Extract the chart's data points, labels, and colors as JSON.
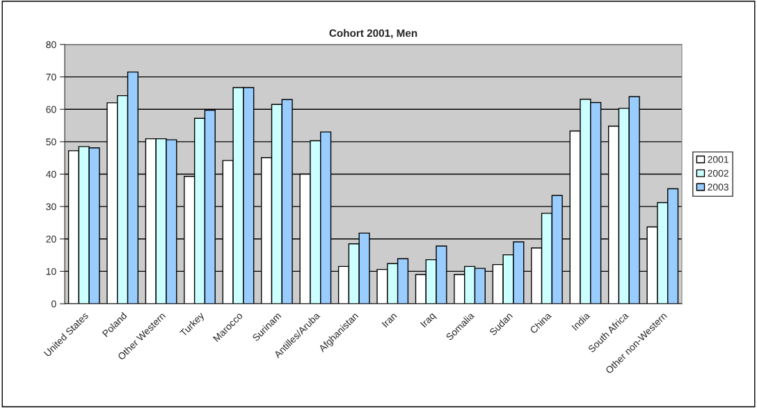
{
  "chart_data": {
    "type": "bar",
    "title": "Cohort 2001, Men",
    "categories": [
      "United States",
      "Poland",
      "Other Western",
      "Turkey",
      "Marocco",
      "Surinam",
      "Antilles/Aruba",
      "Afghanistan",
      "Iran",
      "Iraq",
      "Somalia",
      "Sudan",
      "China",
      "India",
      "South Africa",
      "Other non-Western"
    ],
    "series": [
      {
        "name": "2001",
        "color": "#ffffff",
        "values": [
          47.2,
          62,
          50.9,
          39.3,
          44.2,
          45.1,
          40,
          11.5,
          10.6,
          9,
          9,
          12.1,
          17.2,
          53.3,
          54.8,
          23.7
        ]
      },
      {
        "name": "2002",
        "color": "#ccffff",
        "values": [
          48.5,
          64.2,
          50.9,
          57.2,
          66.7,
          61.5,
          50.3,
          18.5,
          12.4,
          13.6,
          11.5,
          15.1,
          27.9,
          63.1,
          60.3,
          31.2
        ]
      },
      {
        "name": "2003",
        "color": "#99ccff",
        "values": [
          48.1,
          71.5,
          50.6,
          59.7,
          66.7,
          63,
          53,
          21.8,
          13.9,
          17.8,
          10.9,
          19.1,
          33.4,
          62.1,
          63.9,
          35.5
        ]
      }
    ],
    "ylim": [
      0,
      80
    ],
    "yticks": [
      0,
      10,
      20,
      30,
      40,
      50,
      60,
      70,
      80
    ],
    "grid": "y",
    "legend": "right"
  }
}
